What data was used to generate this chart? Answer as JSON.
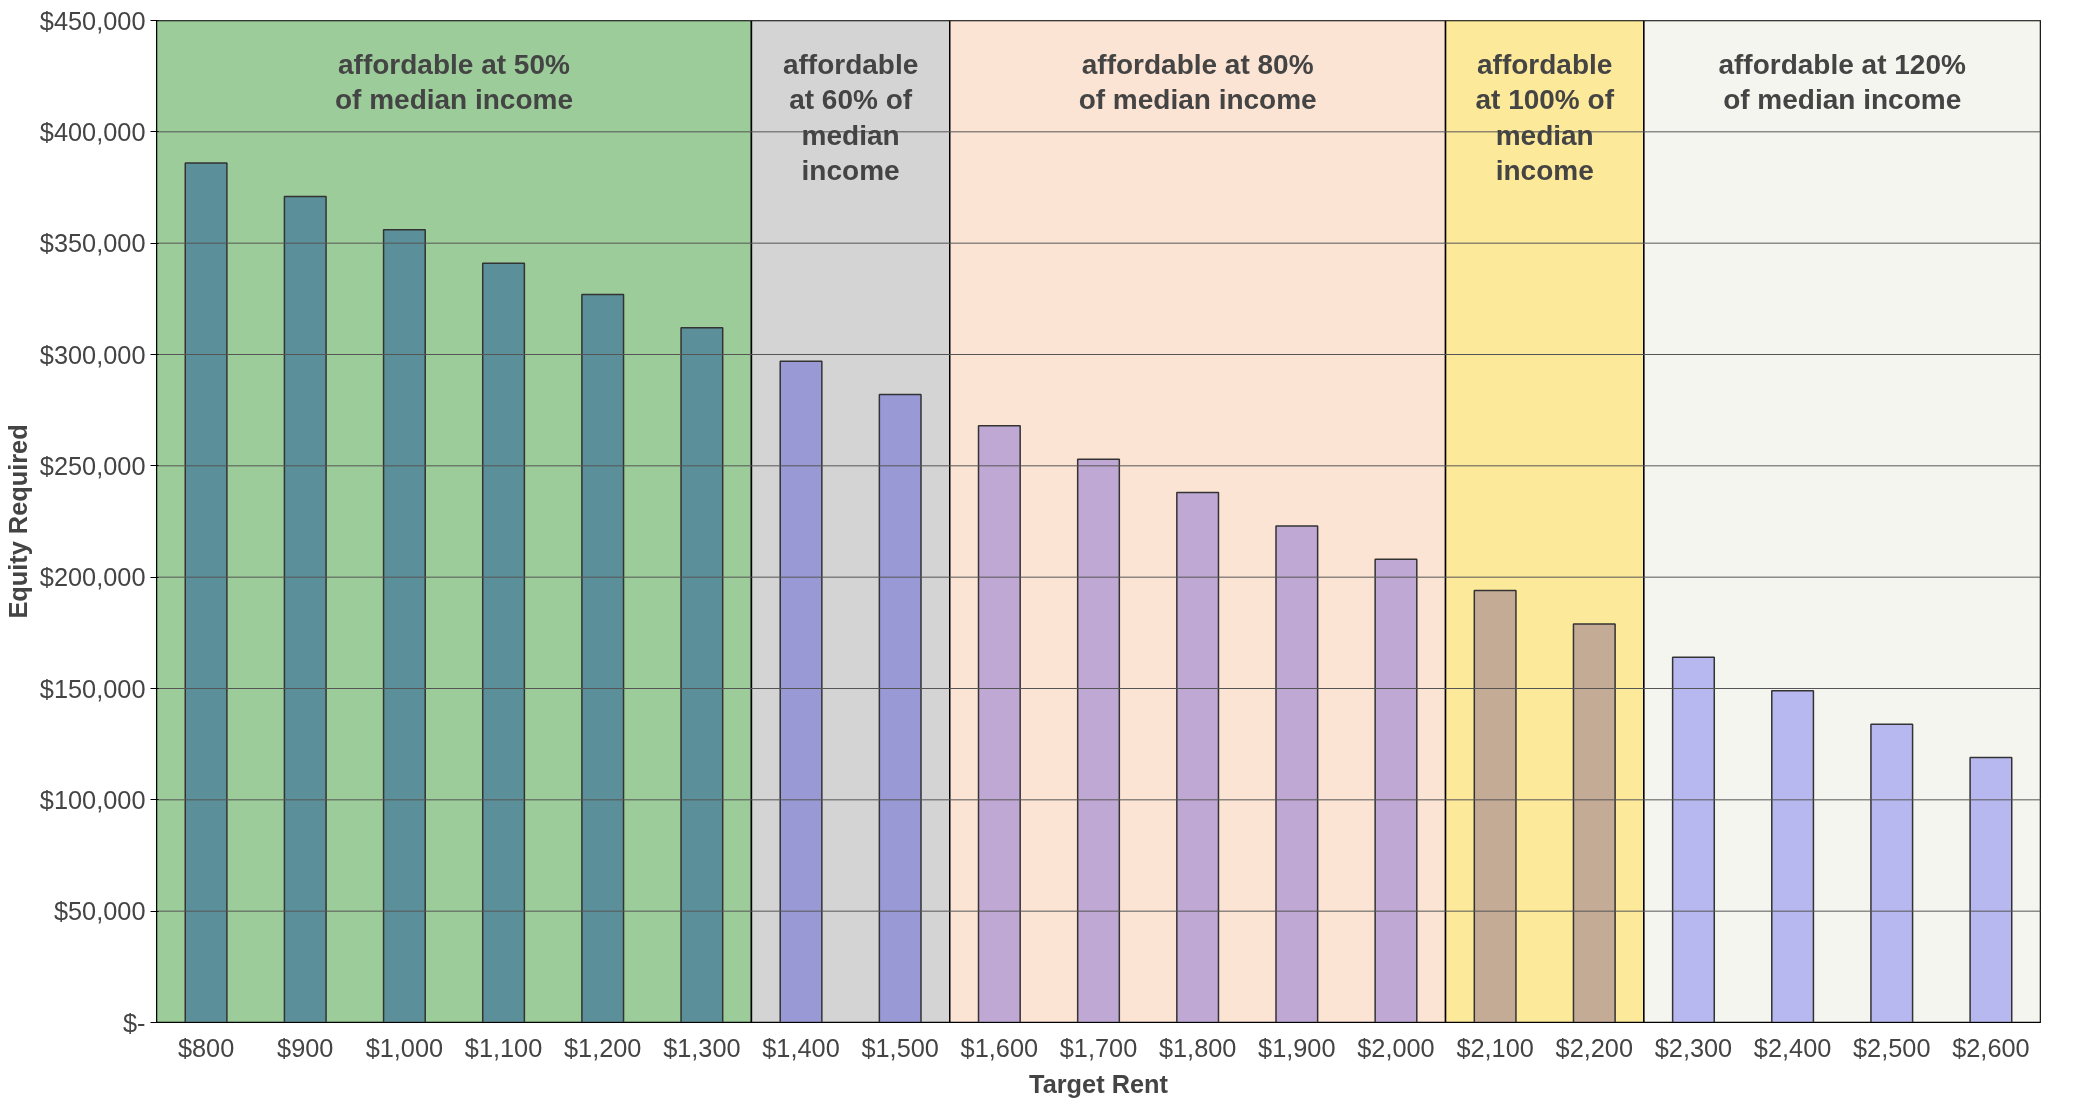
{
  "chart_data": {
    "type": "bar",
    "xlabel": "Target Rent",
    "ylabel": "Equity Required",
    "categories": [
      "$800",
      "$900",
      "$1,000",
      "$1,100",
      "$1,200",
      "$1,300",
      "$1,400",
      "$1,500",
      "$1,600",
      "$1,700",
      "$1,800",
      "$1,900",
      "$2,000",
      "$2,100",
      "$2,200",
      "$2,300",
      "$2,400",
      "$2,500",
      "$2,600"
    ],
    "values": [
      386000,
      371000,
      356000,
      341000,
      327000,
      312000,
      297000,
      282000,
      268000,
      253000,
      238000,
      223000,
      208000,
      194000,
      179000,
      164000,
      149000,
      134000,
      119000
    ],
    "colors": [
      "#5b8f99",
      "#5b8f99",
      "#5b8f99",
      "#5b8f99",
      "#5b8f99",
      "#5b8f99",
      "#9999d6",
      "#9999d6",
      "#c0a8d4",
      "#c0a8d4",
      "#c0a8d4",
      "#c0a8d4",
      "#c0a8d4",
      "#c4ab96",
      "#c4ab96",
      "#b8b8f0",
      "#b8b8f0",
      "#b8b8f0",
      "#b8b8f0"
    ],
    "ylim": [
      0,
      450000
    ],
    "yticks": [
      {
        "value": 0,
        "label": "$-"
      },
      {
        "value": 50000,
        "label": "$50,000"
      },
      {
        "value": 100000,
        "label": "$100,000"
      },
      {
        "value": 150000,
        "label": "$150,000"
      },
      {
        "value": 200000,
        "label": "$200,000"
      },
      {
        "value": 250000,
        "label": "$250,000"
      },
      {
        "value": 300000,
        "label": "$300,000"
      },
      {
        "value": 350000,
        "label": "$350,000"
      },
      {
        "value": 400000,
        "label": "$400,000"
      },
      {
        "value": 450000,
        "label": "$450,000"
      }
    ],
    "grid": "y",
    "bands": [
      {
        "axis": "x",
        "from": "$800",
        "to": "$1,300",
        "label": "affordable at 50%\nof median income",
        "color": "#9bcc99"
      },
      {
        "axis": "x",
        "from": "$1,400",
        "to": "$1,500",
        "label": "affordable\nat 60% of\nmedian\nincome",
        "color": "#d4d4d4"
      },
      {
        "axis": "x",
        "from": "$1,600",
        "to": "$2,000",
        "label": "affordable at 80%\nof median income",
        "color": "#fce4d4"
      },
      {
        "axis": "x",
        "from": "$2,100",
        "to": "$2,200",
        "label": "affordable\nat 100% of\nmedian\nincome",
        "color": "#fde99a"
      },
      {
        "axis": "x",
        "from": "$2,300",
        "to": "$2,600",
        "label": "affordable at 120%\nof median income",
        "color": "#f5f5f0"
      }
    ]
  }
}
